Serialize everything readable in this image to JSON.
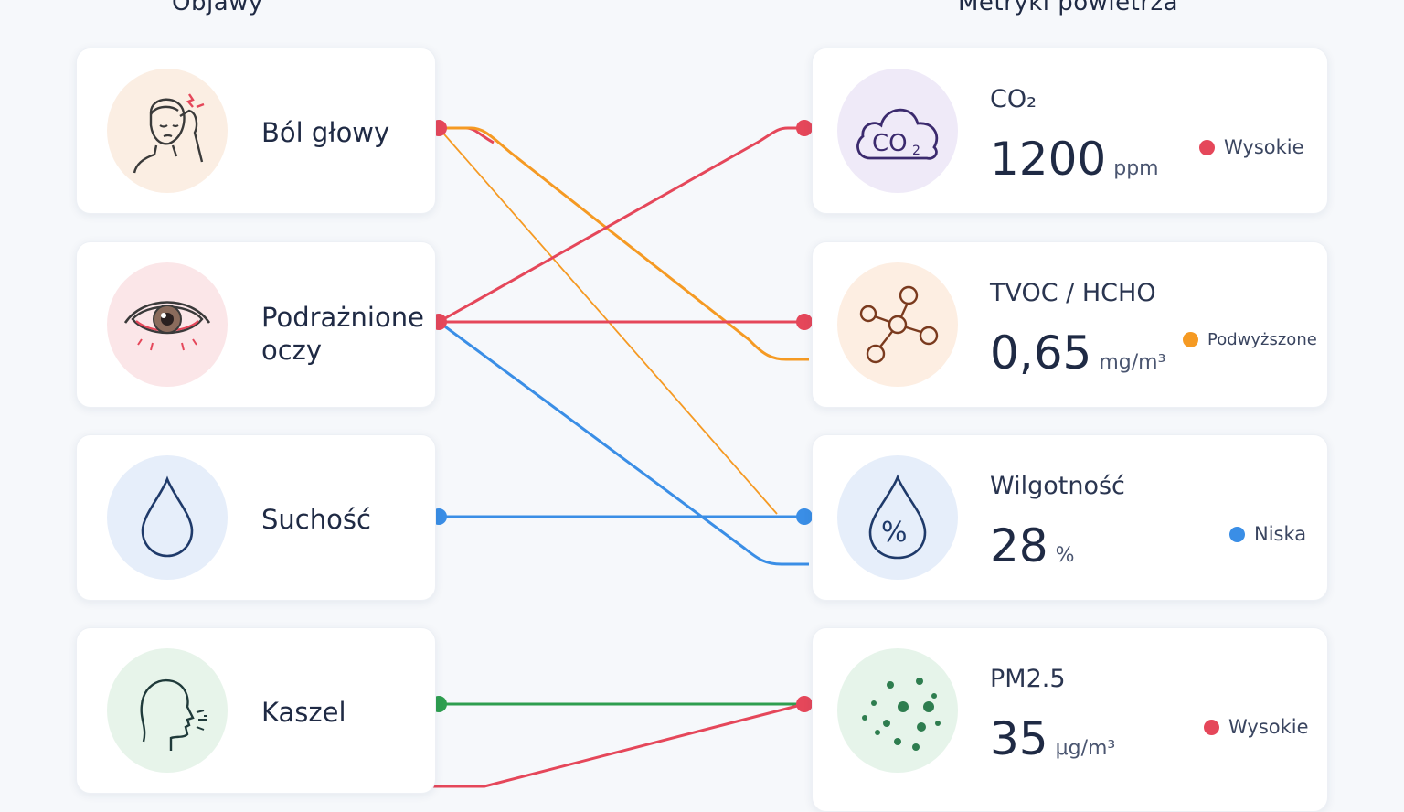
{
  "columns": {
    "left_title": "Objawy",
    "right_title": "Metryki powietrza"
  },
  "symptoms": [
    {
      "label": "Ból głowy",
      "icon": "headache-icon"
    },
    {
      "label": "Podrażnione\noczy",
      "icon": "irritated-eye-icon"
    },
    {
      "label": "Suchość",
      "icon": "water-drop-icon"
    },
    {
      "label": "Kaszel",
      "icon": "cough-icon"
    }
  ],
  "metrics": [
    {
      "name": "CO₂",
      "value": "1200",
      "unit": "ppm",
      "status": "Wysokie",
      "status_color": "#e5475a",
      "icon": "co2-cloud-icon",
      "circle_color": "#efeaf8"
    },
    {
      "name": "TVOC / HCHO",
      "value": "0,65",
      "unit": "mg/m³",
      "status": "Podwyższone",
      "status_color": "#f59a23",
      "icon": "molecule-icon",
      "circle_color": "#fdeee2"
    },
    {
      "name": "Wilgotność",
      "value": "28",
      "unit": "%",
      "status": "Niska",
      "status_color": "#3a8ee6",
      "icon": "humidity-drop-icon",
      "circle_color": "#e6eefa"
    },
    {
      "name": "PM2.5",
      "value": "35",
      "unit": "μg/m³",
      "status": "Wysokie",
      "status_color": "#e5475a",
      "icon": "particles-icon",
      "circle_color": "#e6f4ea"
    }
  ],
  "links": [
    {
      "from": 0,
      "to": 0,
      "color": "#e5475a"
    },
    {
      "from": 0,
      "to": 1,
      "color": "#f59a23"
    },
    {
      "from": 0,
      "to": 2,
      "color": "#f59a23"
    },
    {
      "from": 1,
      "to": 0,
      "color": "#e5475a"
    },
    {
      "from": 1,
      "to": 1,
      "color": "#e5475a"
    },
    {
      "from": 1,
      "to": 2,
      "color": "#3a8ee6"
    },
    {
      "from": 2,
      "to": 2,
      "color": "#3a8ee6"
    },
    {
      "from": 3,
      "to": 3,
      "color": "#2e9e4f"
    },
    {
      "from": 3,
      "to": 3,
      "color": "#e5475a"
    }
  ],
  "colors": {
    "red": "#e5475a",
    "orange": "#f59a23",
    "blue": "#3a8ee6",
    "green": "#2e9e4f"
  }
}
